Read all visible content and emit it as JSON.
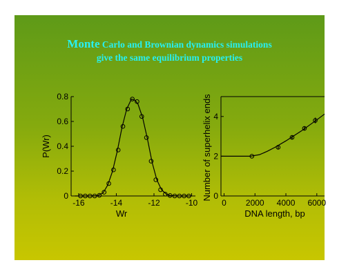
{
  "slide": {
    "title_first_word": "Monte",
    "title_line1_rest": "Carlo and Brownian dynamics simulations",
    "title_line2": "give the same equilibrium properties"
  },
  "chart_data": [
    {
      "type": "scatter",
      "xlabel": "Wr",
      "ylabel": "P(Wr)",
      "xlim": [
        -16.4,
        -9.8
      ],
      "ylim": [
        0,
        0.8
      ],
      "xticks": [
        -16,
        -14,
        -12,
        -10
      ],
      "yticks": [
        0,
        0.2,
        0.4,
        0.6,
        0.8
      ],
      "xtick_labels": [
        "-16",
        "-14",
        "-12",
        "-10"
      ],
      "ytick_labels": [
        "0",
        "0.2",
        "0.4",
        "0.6",
        "0.8"
      ],
      "grid": false,
      "series": [
        {
          "style": "markers",
          "x": [
            -15.9,
            -15.65,
            -15.4,
            -15.15,
            -14.9,
            -14.65,
            -14.4,
            -14.15,
            -13.9,
            -13.65,
            -13.4,
            -13.15,
            -12.9,
            -12.65,
            -12.4,
            -12.15,
            -11.9,
            -11.65,
            -11.4,
            -11.15,
            -10.9,
            -10.65,
            -10.4,
            -10.15
          ],
          "y": [
            0,
            0,
            0,
            0,
            0.005,
            0.03,
            0.1,
            0.21,
            0.37,
            0.56,
            0.7,
            0.78,
            0.76,
            0.64,
            0.47,
            0.28,
            0.13,
            0.05,
            0.015,
            0.004,
            0,
            0,
            0,
            0
          ]
        },
        {
          "style": "line",
          "x": [
            -16.2,
            -15.5,
            -15.0,
            -14.7,
            -14.45,
            -14.2,
            -13.95,
            -13.7,
            -13.45,
            -13.2,
            -13.0,
            -12.85,
            -12.6,
            -12.35,
            -12.1,
            -11.85,
            -11.6,
            -11.35,
            -11.1,
            -10.6,
            -10.0
          ],
          "y": [
            0,
            0,
            0.002,
            0.025,
            0.09,
            0.2,
            0.36,
            0.55,
            0.7,
            0.78,
            0.77,
            0.74,
            0.63,
            0.46,
            0.27,
            0.13,
            0.05,
            0.015,
            0.003,
            0,
            0
          ]
        }
      ]
    },
    {
      "type": "line",
      "xlabel": "DNA length, bp",
      "ylabel": "Number of superhelix ends",
      "xlim": [
        -200,
        6500
      ],
      "ylim": [
        0,
        5
      ],
      "xticks": [
        0,
        2000,
        4000,
        6000
      ],
      "yticks": [
        0,
        2,
        4
      ],
      "xtick_labels": [
        "0",
        "2000",
        "4000",
        "6000"
      ],
      "ytick_labels": [
        "0",
        "2",
        "4"
      ],
      "grid": false,
      "series": [
        {
          "style": "markers",
          "x": [
            1800,
            3500,
            4400,
            5200,
            5900
          ],
          "y": [
            2.0,
            2.45,
            2.95,
            3.4,
            3.8
          ],
          "yerr": [
            0,
            0.1,
            0.08,
            0.1,
            0.14
          ]
        },
        {
          "style": "line",
          "x": [
            -200,
            1700,
            2300,
            2800,
            3300,
            4000,
            5000,
            6000,
            6500
          ],
          "y": [
            2.0,
            2.0,
            2.08,
            2.25,
            2.45,
            2.77,
            3.27,
            3.83,
            4.12
          ]
        }
      ]
    }
  ]
}
